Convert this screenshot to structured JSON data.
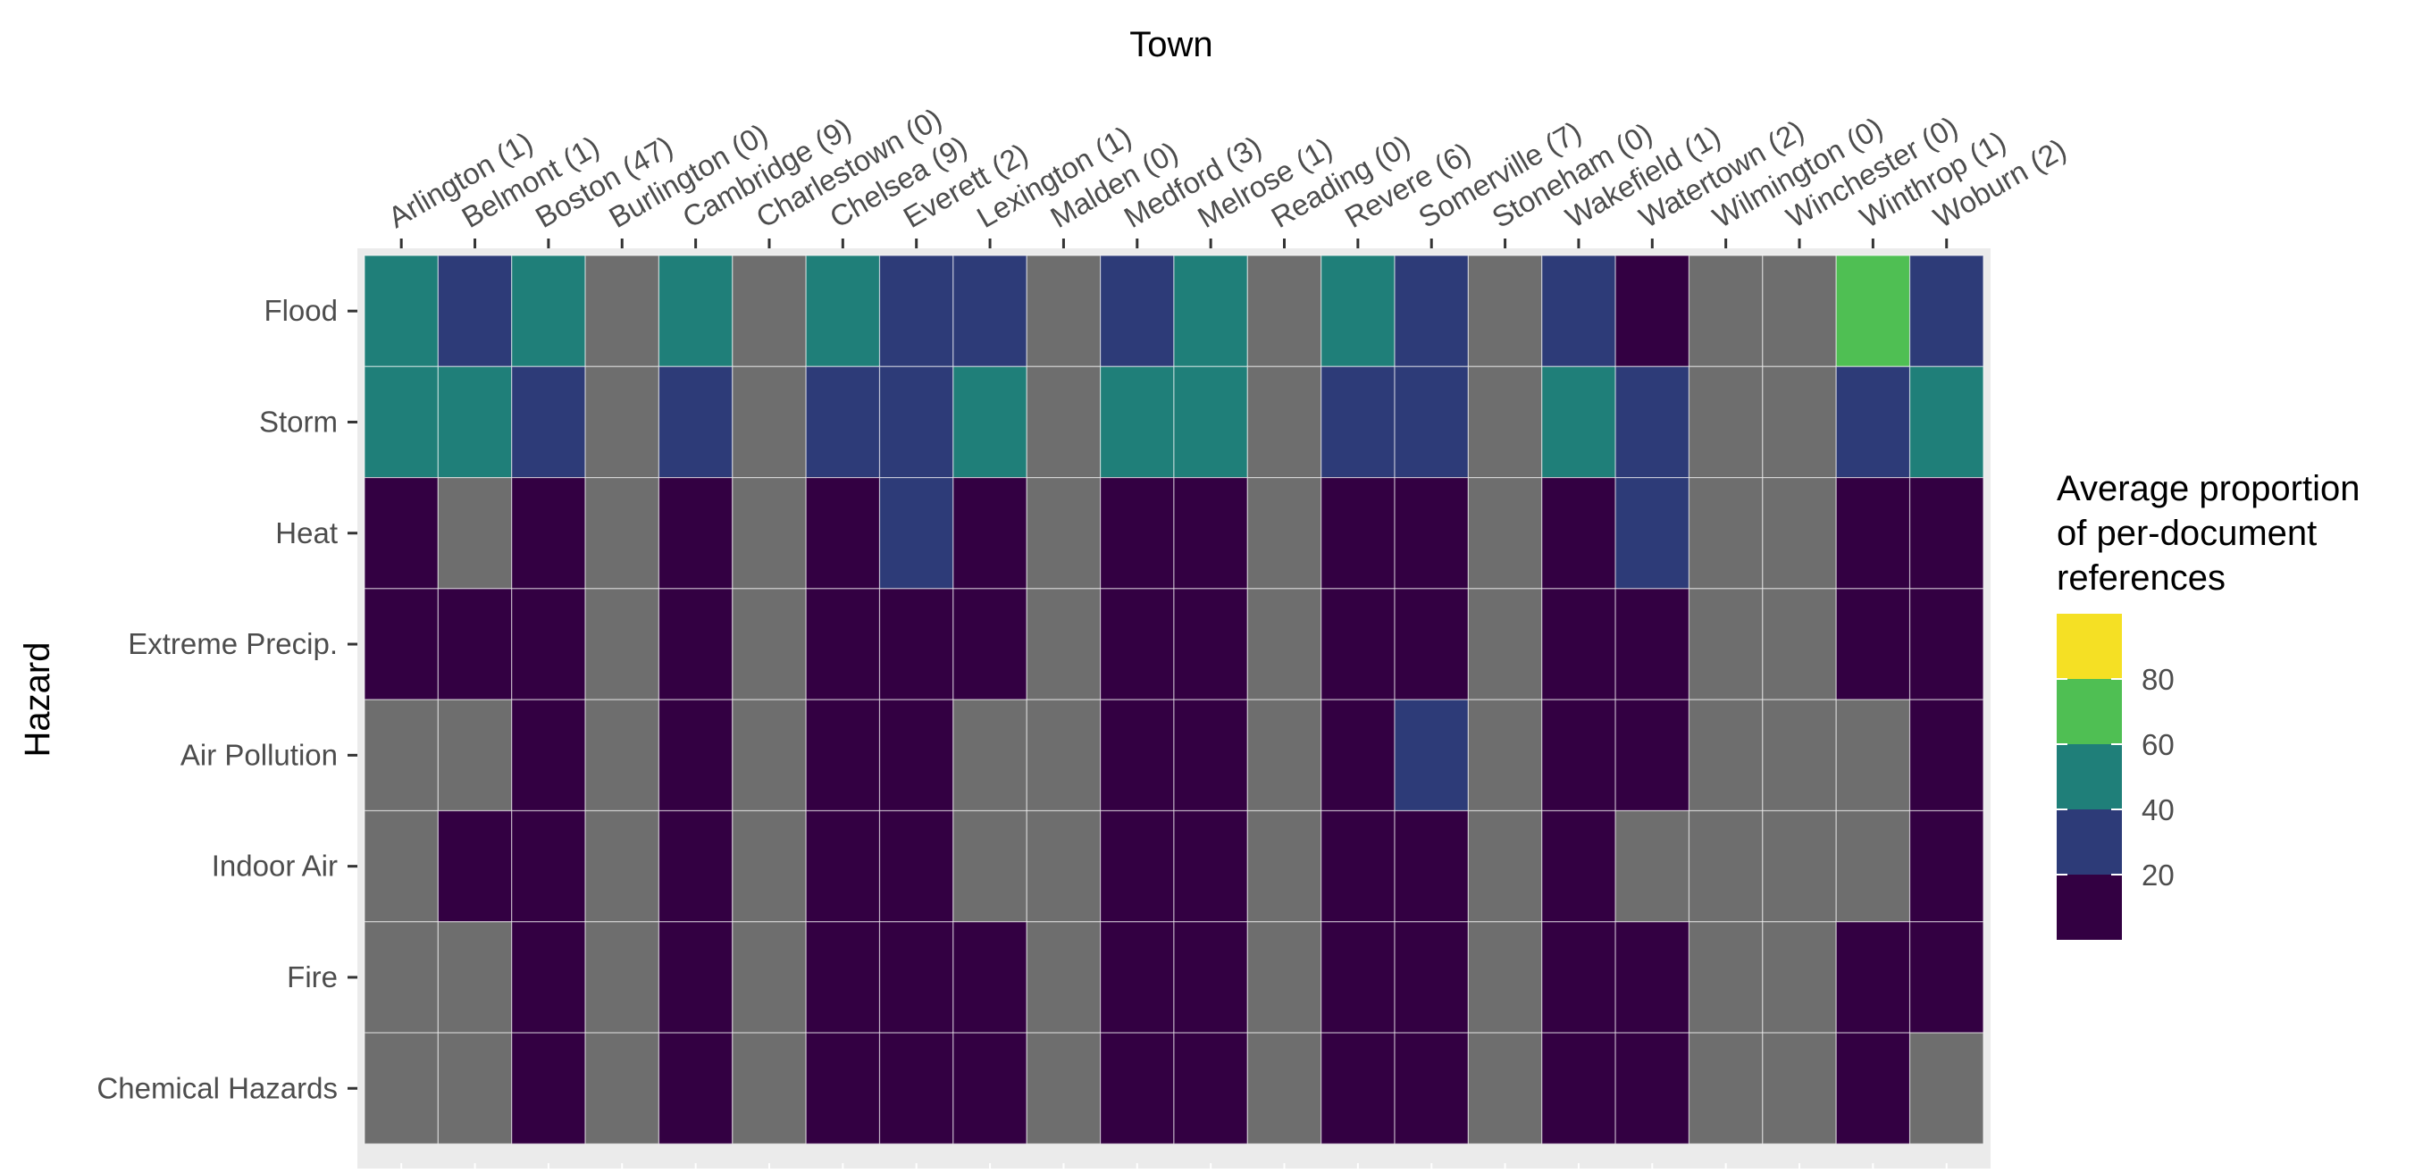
{
  "chart_data": {
    "type": "heatmap",
    "xlabel": "Town",
    "ylabel": "Hazard",
    "x_axis_position": "top",
    "legend_position": "right",
    "na_color": "#6e6e6e",
    "panel_background": "#ebebeb",
    "grid": true,
    "x": [
      "Arlington (1)",
      "Belmont (1)",
      "Boston (47)",
      "Burlington (0)",
      "Cambridge (9)",
      "Charlestown (0)",
      "Chelsea (9)",
      "Everett (2)",
      "Lexington (1)",
      "Malden (0)",
      "Medford (3)",
      "Melrose (1)",
      "Reading (0)",
      "Revere (6)",
      "Somerville (7)",
      "Stoneham (0)",
      "Wakefield (1)",
      "Watertown (2)",
      "Wilmington (0)",
      "Winchester (0)",
      "Winthrop (1)",
      "Woburn (2)"
    ],
    "y": [
      "Flood",
      "Storm",
      "Heat",
      "Extreme Precip.",
      "Air Pollution",
      "Indoor Air",
      "Fire",
      "Chemical Hazards"
    ],
    "values": [
      [
        45,
        25,
        45,
        null,
        45,
        null,
        45,
        25,
        25,
        null,
        25,
        45,
        null,
        45,
        25,
        null,
        25,
        5,
        null,
        null,
        65,
        25
      ],
      [
        45,
        45,
        25,
        null,
        25,
        null,
        25,
        25,
        45,
        null,
        45,
        45,
        null,
        25,
        25,
        null,
        45,
        25,
        null,
        null,
        25,
        45
      ],
      [
        5,
        null,
        5,
        null,
        5,
        null,
        5,
        25,
        5,
        null,
        5,
        5,
        null,
        5,
        5,
        null,
        5,
        25,
        null,
        null,
        5,
        5
      ],
      [
        5,
        5,
        5,
        null,
        5,
        null,
        5,
        5,
        5,
        null,
        5,
        5,
        null,
        5,
        5,
        null,
        5,
        5,
        null,
        null,
        5,
        5
      ],
      [
        null,
        null,
        5,
        null,
        5,
        null,
        5,
        5,
        null,
        null,
        5,
        5,
        null,
        5,
        25,
        null,
        5,
        5,
        null,
        null,
        null,
        5
      ],
      [
        null,
        5,
        5,
        null,
        5,
        null,
        5,
        5,
        null,
        null,
        5,
        5,
        null,
        5,
        5,
        null,
        5,
        null,
        null,
        null,
        null,
        5
      ],
      [
        null,
        null,
        5,
        null,
        5,
        null,
        5,
        5,
        5,
        null,
        5,
        5,
        null,
        5,
        5,
        null,
        5,
        5,
        null,
        null,
        5,
        5
      ],
      [
        null,
        null,
        5,
        null,
        5,
        null,
        5,
        5,
        5,
        null,
        5,
        5,
        null,
        5,
        5,
        null,
        5,
        5,
        null,
        null,
        5,
        null
      ]
    ],
    "legend": {
      "title_lines": [
        "Average proportion",
        "of per-document",
        "references"
      ],
      "bins": [
        {
          "min": 0,
          "max": 10,
          "color": "#330042"
        },
        {
          "min": 10,
          "max": 30,
          "color": "#2d3b78"
        },
        {
          "min": 30,
          "max": 50,
          "color": "#1f7f79"
        },
        {
          "min": 50,
          "max": 70,
          "color": "#4fbf53"
        },
        {
          "min": 70,
          "max": 90,
          "color": "#f5e024"
        }
      ],
      "labels": [
        "20",
        "40",
        "60",
        "80"
      ]
    }
  }
}
